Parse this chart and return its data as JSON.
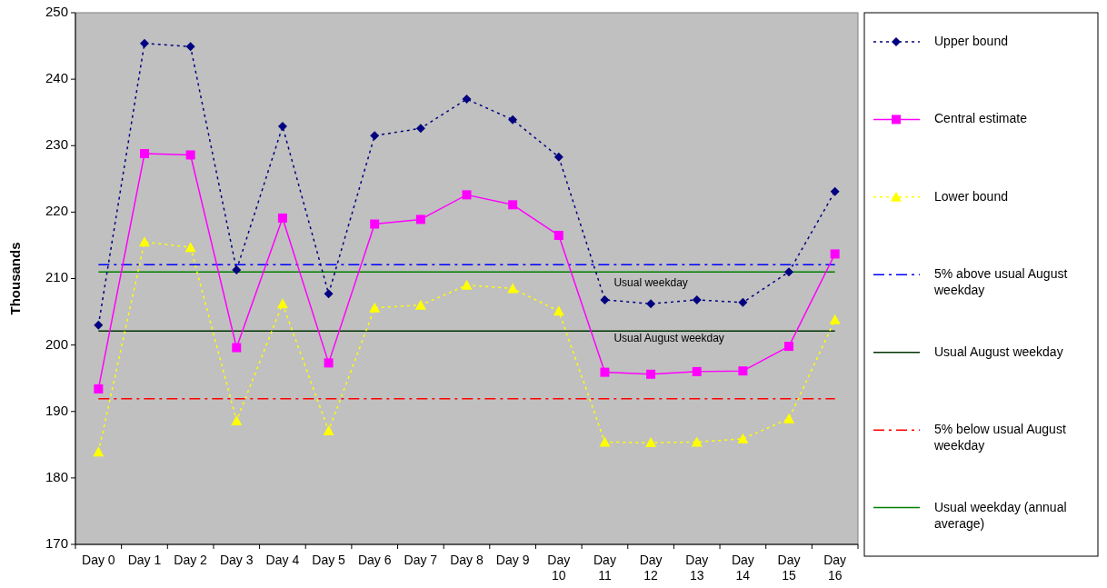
{
  "chart_data": {
    "type": "line",
    "ylabel": "Thousands",
    "categories": [
      "Day 0",
      "Day 1",
      "Day 2",
      "Day 3",
      "Day 4",
      "Day 5",
      "Day 6",
      "Day 7",
      "Day 8",
      "Day 9",
      "Day 10",
      "Day 11",
      "Day 12",
      "Day 13",
      "Day 14",
      "Day 15",
      "Day 16"
    ],
    "series": [
      {
        "name": "Upper bound",
        "color": "#000080",
        "marker": "diamond",
        "line_style": "dotted",
        "values": [
          203.0,
          245.4,
          244.9,
          211.3,
          232.9,
          207.7,
          231.5,
          232.6,
          237.0,
          233.9,
          228.3,
          206.8,
          206.2,
          206.8,
          206.4,
          211.0,
          223.1
        ]
      },
      {
        "name": "Central estimate",
        "color": "#ff00ff",
        "marker": "square",
        "line_style": "solid",
        "values": [
          193.4,
          228.8,
          228.6,
          199.6,
          219.1,
          197.3,
          218.2,
          218.9,
          222.6,
          221.1,
          216.5,
          195.9,
          195.6,
          196.0,
          196.1,
          199.8,
          213.7
        ]
      },
      {
        "name": "Lower bound",
        "color": "#ffff00",
        "marker": "triangle",
        "line_style": "dotted",
        "values": [
          183.9,
          215.5,
          214.7,
          188.6,
          206.2,
          187.1,
          205.6,
          206.0,
          209.0,
          208.5,
          205.1,
          185.4,
          185.3,
          185.4,
          185.9,
          188.9,
          203.8
        ]
      }
    ],
    "ref_lines": [
      {
        "axis": "y",
        "value": 212.1,
        "label": "5% above usual August weekday",
        "color": "#0000ff",
        "line_style": "dashed"
      },
      {
        "axis": "y",
        "value": 202.1,
        "label": "Usual August weekday",
        "color": "#003300",
        "line_style": "solid"
      },
      {
        "axis": "y",
        "value": 191.9,
        "label": "5% below usual August weekday",
        "color": "#ff0000",
        "line_style": "dashed"
      },
      {
        "axis": "y",
        "value": 211.0,
        "label": "Usual weekday (annual average)",
        "color": "#008000",
        "line_style": "solid"
      }
    ],
    "annotations": [
      "Usual weekday",
      "Usual August weekday"
    ],
    "ylim": [
      170,
      250
    ],
    "yticks": [
      170,
      180,
      190,
      200,
      210,
      220,
      230,
      240,
      250
    ],
    "grid": false,
    "legend": "right"
  }
}
